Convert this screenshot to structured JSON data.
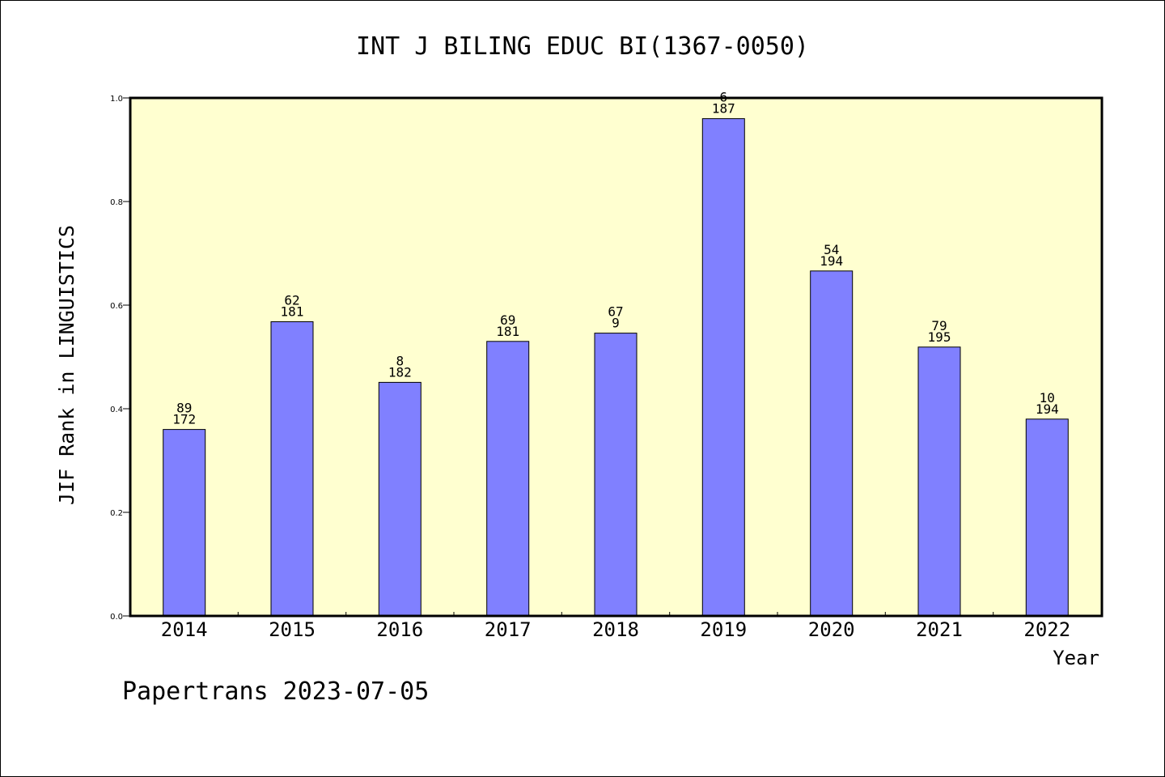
{
  "chart_data": {
    "type": "bar",
    "title": "INT J BILING EDUC BI(1367-0050)",
    "xlabel": "Year",
    "ylabel": "JIF Rank in LINGUISTICS",
    "ylim": [
      0,
      1.0
    ],
    "yticks": [
      "0.0",
      "0.2",
      "0.4",
      "0.6",
      "0.8",
      "1.0"
    ],
    "categories": [
      "2014",
      "2015",
      "2016",
      "2017",
      "2018",
      "2019",
      "2020",
      "2021",
      "2022"
    ],
    "values": [
      0.36,
      0.568,
      0.451,
      0.53,
      0.546,
      0.96,
      0.666,
      0.519,
      0.38
    ],
    "rank_labels": [
      "89",
      "62",
      "8",
      "69",
      "67",
      "6",
      "54",
      "79",
      "10"
    ],
    "total_labels": [
      "172",
      "181",
      "182",
      "181",
      "9",
      "187",
      "194",
      "195",
      "194"
    ],
    "grid": false,
    "colors": {
      "bar": "#8080ff",
      "plot_background": "#ffffd0",
      "axis": "#000000"
    }
  },
  "footer": {
    "text": "Papertrans 2023-07-05"
  }
}
